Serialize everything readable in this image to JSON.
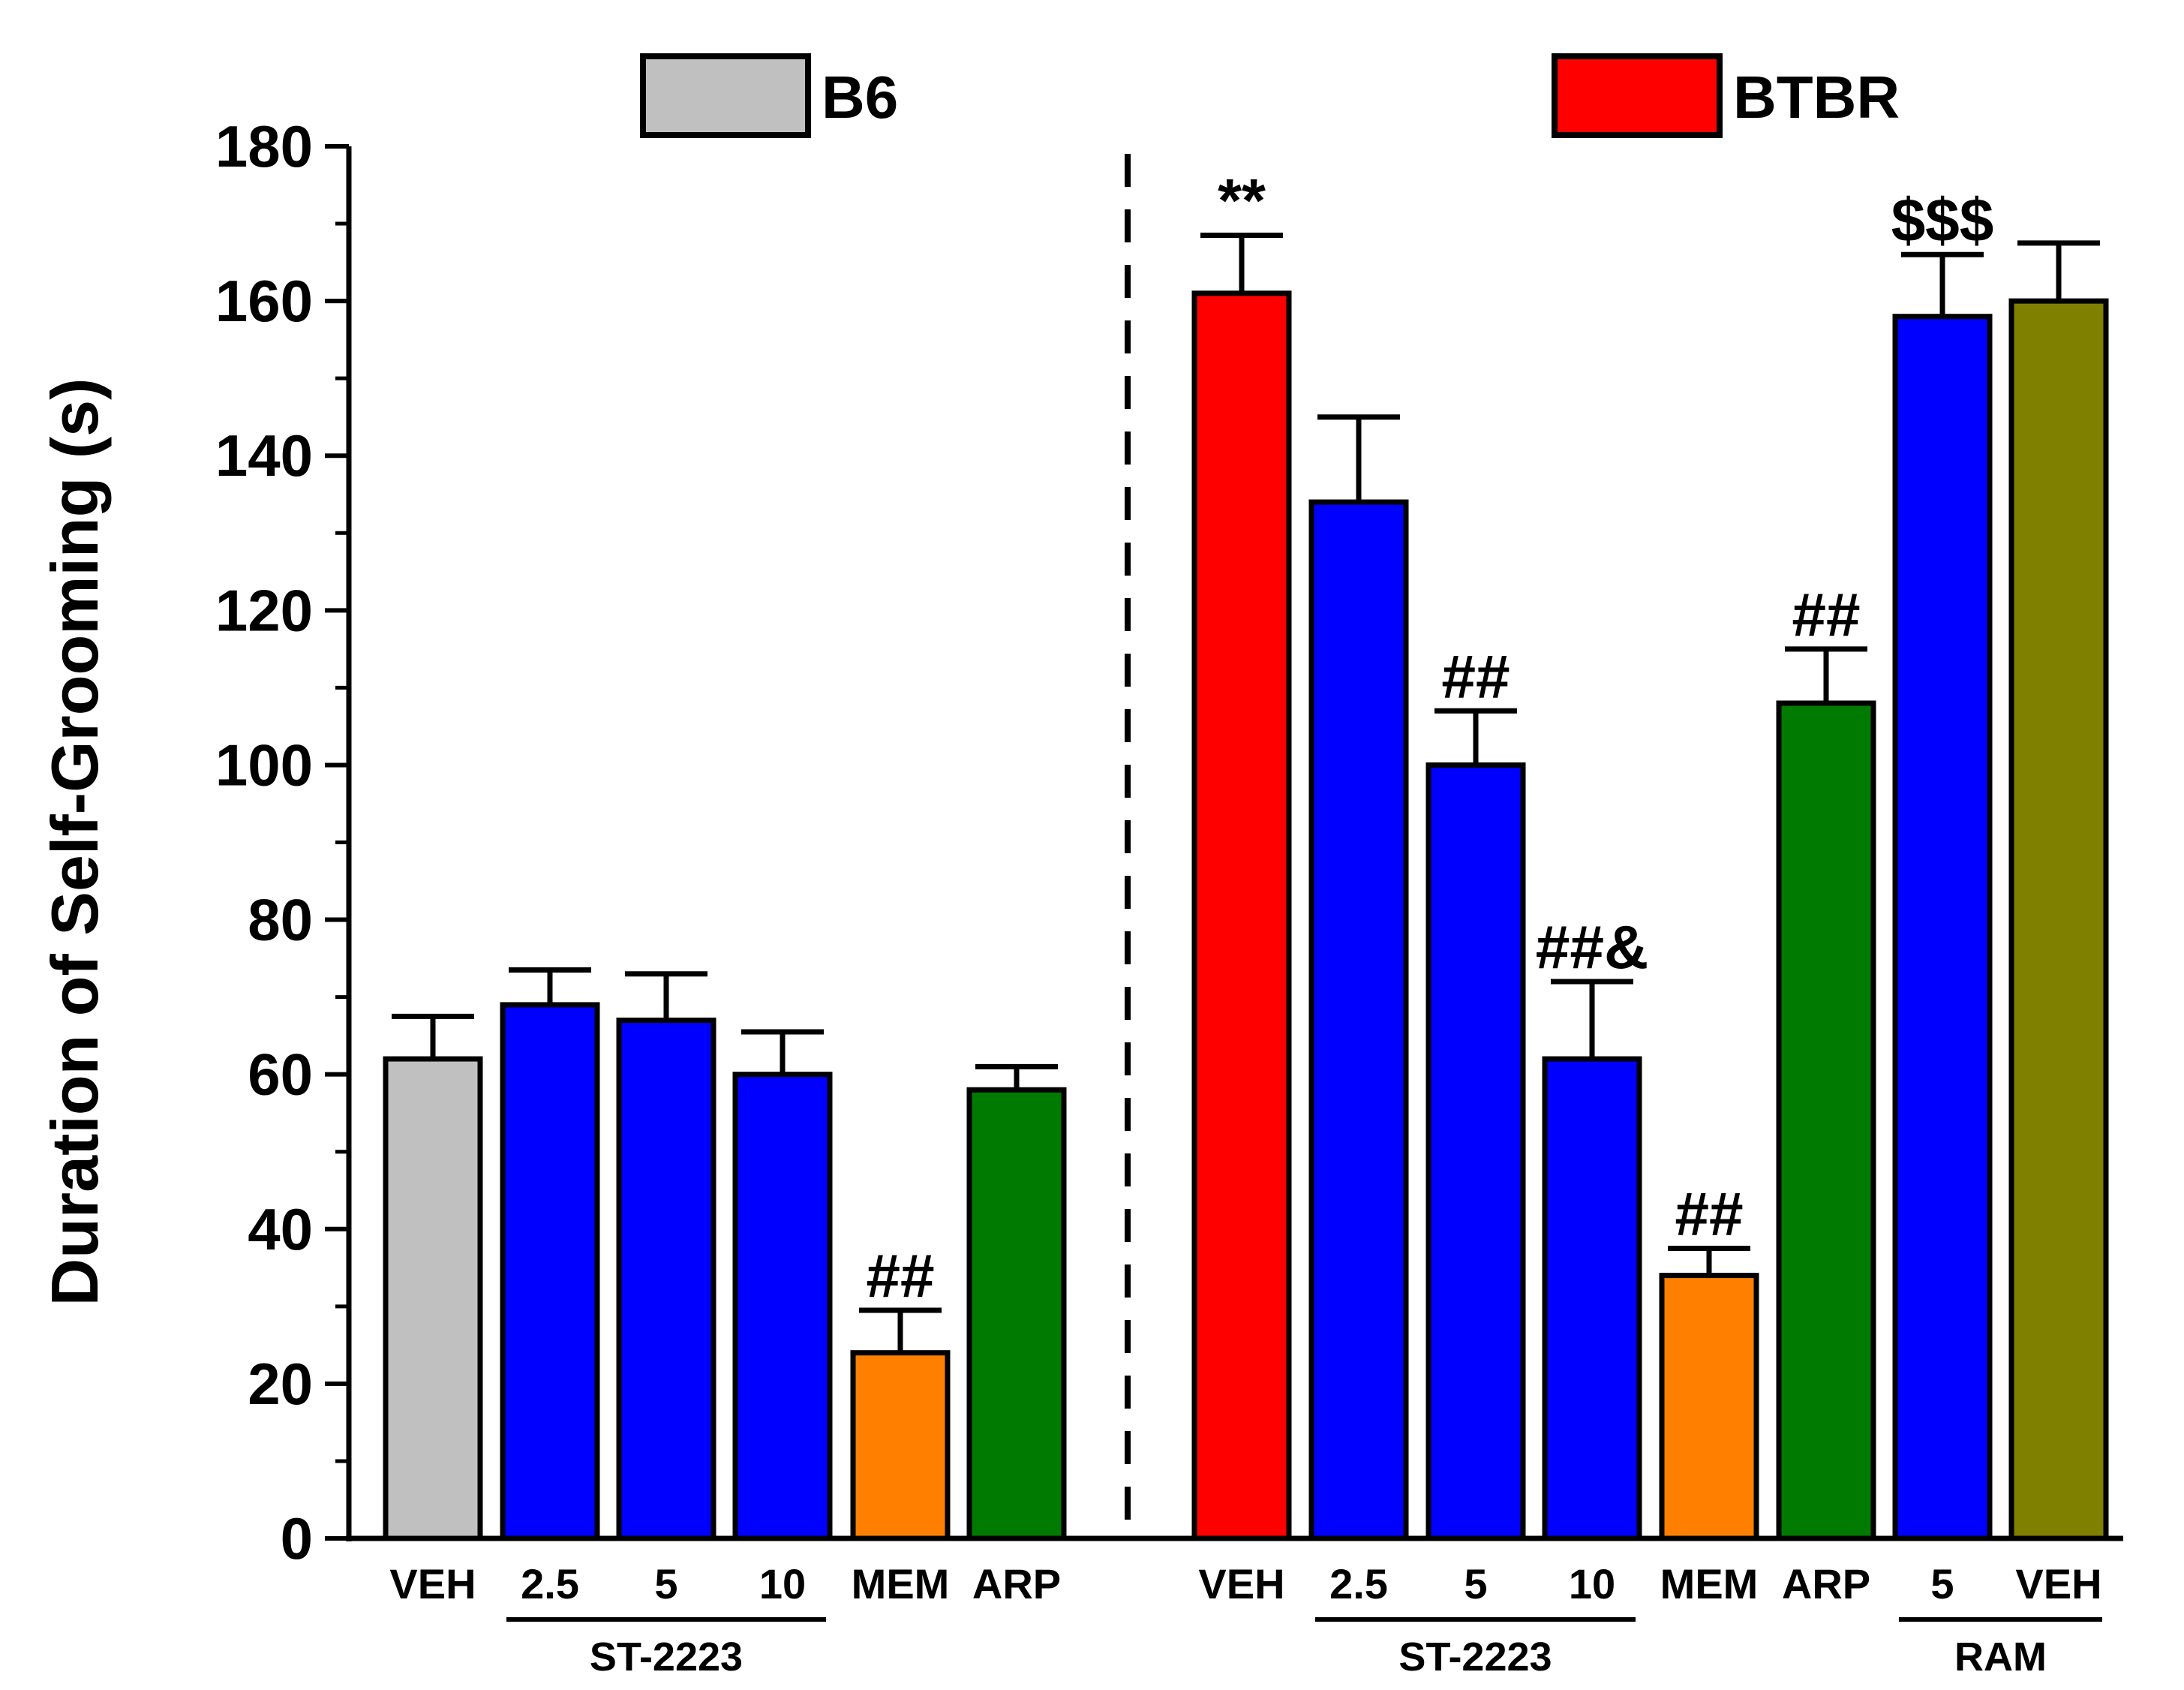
{
  "chart_data": {
    "type": "bar",
    "title": "",
    "xlabel": "",
    "ylabel": "Duration of Self-Grooming (s)",
    "ylim": [
      0,
      180
    ],
    "yticks": [
      0,
      20,
      40,
      60,
      80,
      100,
      120,
      140,
      160,
      180
    ],
    "legend": [
      {
        "name": "B6",
        "color": "#c0c0c0"
      },
      {
        "name": "BTBR",
        "color": "#ff0000"
      }
    ],
    "bars": [
      {
        "group": "B6",
        "label": "VEH",
        "value": 62,
        "error": 5.5,
        "color": "#c0c0c0",
        "annotation": ""
      },
      {
        "group": "B6",
        "label": "2.5",
        "value": 69,
        "error": 4.5,
        "color": "#0000ff",
        "annotation": ""
      },
      {
        "group": "B6",
        "label": "5",
        "value": 67,
        "error": 6,
        "color": "#0000ff",
        "annotation": ""
      },
      {
        "group": "B6",
        "label": "10",
        "value": 60,
        "error": 5.5,
        "color": "#0000ff",
        "annotation": ""
      },
      {
        "group": "B6",
        "label": "MEM",
        "value": 24,
        "error": 5.5,
        "color": "#ff8000",
        "annotation": "##"
      },
      {
        "group": "B6",
        "label": "ARP",
        "value": 58,
        "error": 3,
        "color": "#007a00",
        "annotation": ""
      },
      {
        "group": "BTBR",
        "label": "VEH",
        "value": 161,
        "error": 7.5,
        "color": "#ff0000",
        "annotation": "**"
      },
      {
        "group": "BTBR",
        "label": "2.5",
        "value": 134,
        "error": 11,
        "color": "#0000ff",
        "annotation": ""
      },
      {
        "group": "BTBR",
        "label": "5",
        "value": 100,
        "error": 7,
        "color": "#0000ff",
        "annotation": "##"
      },
      {
        "group": "BTBR",
        "label": "10",
        "value": 62,
        "error": 10,
        "color": "#0000ff",
        "annotation": "##&"
      },
      {
        "group": "BTBR",
        "label": "MEM",
        "value": 34,
        "error": 3.5,
        "color": "#ff8000",
        "annotation": "##"
      },
      {
        "group": "BTBR",
        "label": "ARP",
        "value": 108,
        "error": 7,
        "color": "#007a00",
        "annotation": "##"
      },
      {
        "group": "BTBR",
        "label": "5",
        "value": 158,
        "error": 8,
        "color": "#0000ff",
        "annotation": "$$$"
      },
      {
        "group": "BTBR",
        "label": "VEH",
        "value": 160,
        "error": 7.5,
        "color": "#808000",
        "annotation": ""
      }
    ],
    "brackets": [
      {
        "label": "ST-2223",
        "from_bar": 1,
        "to_bar": 3
      },
      {
        "label": "ST-2223",
        "from_bar": 7,
        "to_bar": 9
      },
      {
        "label": "RAM",
        "from_bar": 12,
        "to_bar": 13
      }
    ],
    "divider_after_bar": 5
  }
}
